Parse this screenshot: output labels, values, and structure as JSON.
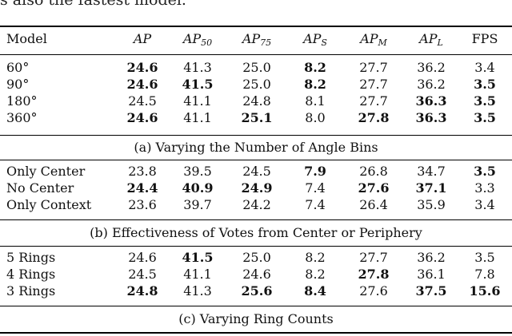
{
  "cut_text": "s also the fastest model.",
  "headers": {
    "model": "Model",
    "ap": "AP",
    "ap50": "50",
    "ap75": "75",
    "aps": "S",
    "apm": "M",
    "apl": "L",
    "fps": "FPS"
  },
  "sections": [
    {
      "caption": "(a) Varying the Number of Angle Bins",
      "rows": [
        {
          "label": "60°",
          "values": [
            "24.6",
            "41.3",
            "25.0",
            "8.2",
            "27.7",
            "36.2",
            "3.4"
          ],
          "bold": [
            true,
            false,
            false,
            true,
            false,
            false,
            false
          ]
        },
        {
          "label": "90°",
          "values": [
            "24.6",
            "41.5",
            "25.0",
            "8.2",
            "27.7",
            "36.2",
            "3.5"
          ],
          "bold": [
            true,
            true,
            false,
            true,
            false,
            false,
            true
          ]
        },
        {
          "label": "180°",
          "values": [
            "24.5",
            "41.1",
            "24.8",
            "8.1",
            "27.7",
            "36.3",
            "3.5"
          ],
          "bold": [
            false,
            false,
            false,
            false,
            false,
            true,
            true
          ]
        },
        {
          "label": "360°",
          "values": [
            "24.6",
            "41.1",
            "25.1",
            "8.0",
            "27.8",
            "36.3",
            "3.5"
          ],
          "bold": [
            true,
            false,
            true,
            false,
            true,
            true,
            true
          ]
        }
      ]
    },
    {
      "caption": "(b) Effectiveness of Votes from Center or Periphery",
      "rows": [
        {
          "label": "Only Center",
          "values": [
            "23.8",
            "39.5",
            "24.5",
            "7.9",
            "26.8",
            "34.7",
            "3.5"
          ],
          "bold": [
            false,
            false,
            false,
            true,
            false,
            false,
            true
          ]
        },
        {
          "label": "No Center",
          "values": [
            "24.4",
            "40.9",
            "24.9",
            "7.4",
            "27.6",
            "37.1",
            "3.3"
          ],
          "bold": [
            true,
            true,
            true,
            false,
            true,
            true,
            false
          ]
        },
        {
          "label": "Only Context",
          "values": [
            "23.6",
            "39.7",
            "24.2",
            "7.4",
            "26.4",
            "35.9",
            "3.4"
          ],
          "bold": [
            false,
            false,
            false,
            false,
            false,
            false,
            false
          ]
        }
      ]
    },
    {
      "caption": "(c) Varying Ring Counts",
      "rows": [
        {
          "label": "5 Rings",
          "values": [
            "24.6",
            "41.5",
            "25.0",
            "8.2",
            "27.7",
            "36.2",
            "3.5"
          ],
          "bold": [
            false,
            true,
            false,
            false,
            false,
            false,
            false
          ]
        },
        {
          "label": "4 Rings",
          "values": [
            "24.5",
            "41.1",
            "24.6",
            "8.2",
            "27.8",
            "36.1",
            "7.8"
          ],
          "bold": [
            false,
            false,
            false,
            false,
            true,
            false,
            false
          ]
        },
        {
          "label": "3 Rings",
          "values": [
            "24.8",
            "41.3",
            "25.6",
            "8.4",
            "27.6",
            "37.5",
            "15.6"
          ],
          "bold": [
            true,
            false,
            true,
            true,
            false,
            true,
            true
          ]
        }
      ]
    }
  ]
}
